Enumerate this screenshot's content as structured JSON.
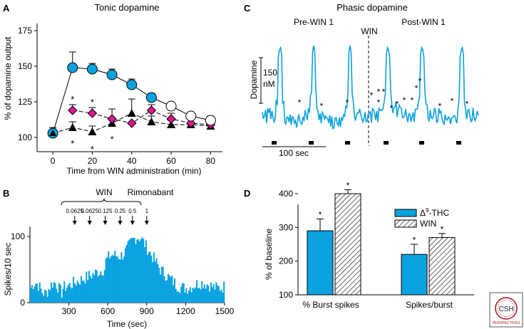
{
  "colors": {
    "blue": "#0aa2e0",
    "magenta": "#e0148c",
    "black": "#000000",
    "gray": "#444444"
  },
  "logo": {
    "line1": "CSH",
    "line2": "PERSPECTIVES"
  },
  "chart_data": [
    {
      "panel": "A",
      "type": "line",
      "title": "Tonic dopamine",
      "xlabel": "Time from WIN administration (min)",
      "ylabel": "% of dopamine output",
      "xlim": [
        -8,
        86
      ],
      "ylim": [
        90,
        180
      ],
      "xticks": [
        0,
        20,
        40,
        60,
        80
      ],
      "yticks": [
        100,
        125,
        150,
        175
      ],
      "series": [
        {
          "name": "circles",
          "x": [
            0,
            10,
            20,
            30,
            40,
            50,
            60,
            70,
            80
          ],
          "y": [
            103,
            149,
            148,
            144,
            137,
            128,
            122,
            115,
            112
          ],
          "err": [
            4,
            11,
            4,
            4,
            4,
            3,
            0,
            0,
            3
          ],
          "filled": [
            true,
            true,
            true,
            true,
            true,
            true,
            false,
            false,
            false
          ]
        },
        {
          "name": "diamonds",
          "x": [
            10,
            20,
            30,
            40,
            50,
            60,
            70,
            80
          ],
          "y": [
            119,
            117,
            113,
            110,
            119,
            113,
            110,
            109
          ],
          "err": [
            4,
            4,
            0,
            0,
            4,
            4,
            0,
            0
          ]
        },
        {
          "name": "triangles",
          "x": [
            0,
            10,
            20,
            30,
            40,
            50,
            60,
            70,
            80
          ],
          "y": [
            103,
            107,
            104,
            110,
            117,
            111,
            109,
            109,
            108
          ],
          "err": [
            0,
            4,
            4,
            10,
            10,
            4,
            3,
            0,
            0
          ]
        }
      ],
      "stars": [
        {
          "x": 10,
          "y": 127
        },
        {
          "x": 10,
          "y": 96
        },
        {
          "x": 20,
          "y": 125
        },
        {
          "x": 20,
          "y": 92
        },
        {
          "x": 30,
          "y": 99
        }
      ]
    },
    {
      "panel": "B",
      "type": "bar",
      "xlabel": "Time (sec)",
      "ylabel": "Spikes/10 sec",
      "xlim": [
        0,
        1500
      ],
      "ylim": [
        0,
        115
      ],
      "xticks": [
        300,
        600,
        900,
        1200,
        1500
      ],
      "yticks": [
        0,
        100
      ],
      "annot_win": "WIN",
      "annot_rim": "Rimonabant",
      "doses": [
        {
          "label": "0.0625",
          "t": 345
        },
        {
          "label": "0.0625",
          "t": 460
        },
        {
          "label": "0.125",
          "t": 580
        },
        {
          "label": "0.25",
          "t": 695
        },
        {
          "label": "0.5",
          "t": 790
        },
        {
          "label": "1",
          "t": 900
        }
      ]
    },
    {
      "panel": "C",
      "type": "line",
      "title": "Phasic dopamine",
      "label_pre": "Pre-WIN 1",
      "label_win": "WIN",
      "label_post": "Post-WIN 1",
      "ylabel": "Dopamine",
      "scale_label_1": "150",
      "scale_label_2": "nM",
      "time_scale_label": "100 sec"
    },
    {
      "panel": "D",
      "type": "bar",
      "ylabel": "% of baseline",
      "ylim": [
        100,
        400
      ],
      "yticks": [
        100,
        200,
        300,
        400
      ],
      "categories": [
        "% Burst spikes",
        "Spikes/burst"
      ],
      "series": [
        {
          "name": "Δ9-THC",
          "values": [
            290,
            220
          ],
          "err": [
            35,
            30
          ]
        },
        {
          "name": "WIN",
          "values": [
            400,
            270
          ],
          "err": [
            12,
            12
          ]
        }
      ],
      "legend_main": "Δ",
      "legend_sup": "9",
      "legend_rest": "-THC",
      "legend_win": "WIN"
    }
  ],
  "panel_letters": {
    "a": "A",
    "b": "B",
    "c": "C",
    "d": "D"
  }
}
